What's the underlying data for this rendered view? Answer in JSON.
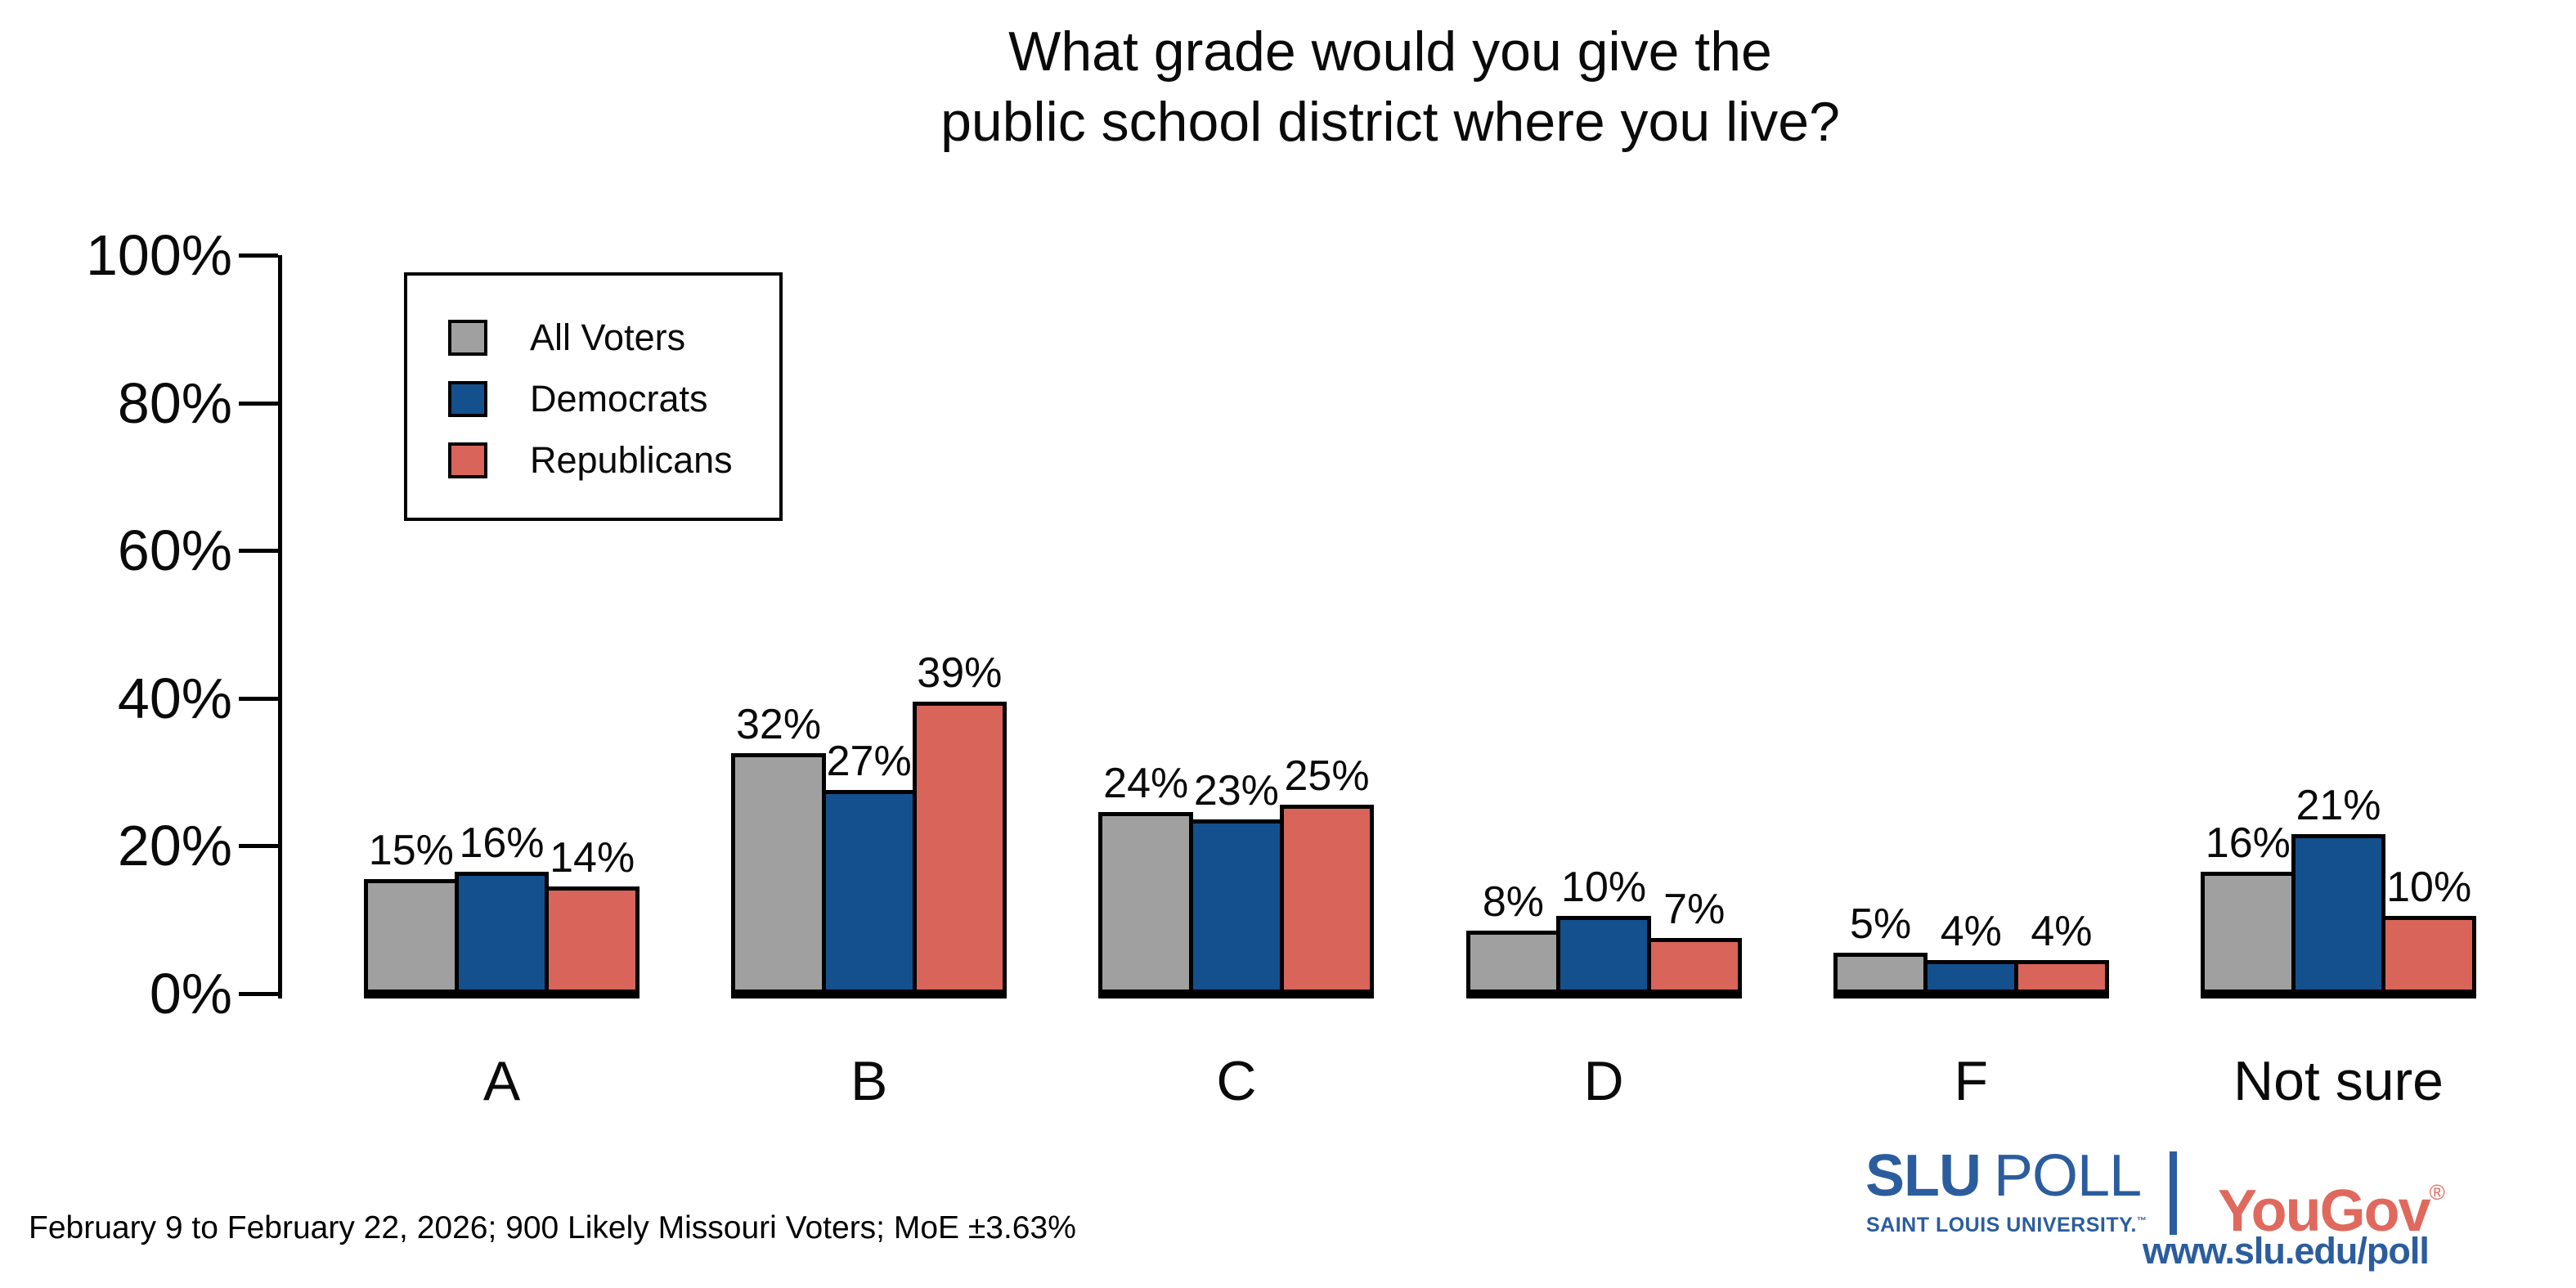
{
  "title": {
    "line1": "What grade would you give the",
    "line2": "public school district where you live?"
  },
  "chart_data": {
    "type": "bar",
    "title": "What grade would you give the public school district where you live?",
    "categories": [
      "A",
      "B",
      "C",
      "D",
      "F",
      "Not sure"
    ],
    "series": [
      {
        "name": "All Voters",
        "color": "#a0a0a0",
        "values": [
          15,
          32,
          24,
          8,
          5,
          16
        ]
      },
      {
        "name": "Democrats",
        "color": "#14508e",
        "values": [
          16,
          27,
          23,
          10,
          4,
          21
        ]
      },
      {
        "name": "Republicans",
        "color": "#d9655a",
        "values": [
          14,
          39,
          25,
          7,
          4,
          10
        ]
      }
    ],
    "value_suffix": "%",
    "ylabel": "",
    "xlabel": "",
    "ylim": [
      0,
      100
    ],
    "y_tick_labels": [
      "0%",
      "20%",
      "40%",
      "60%",
      "80%",
      "100%"
    ],
    "grid": false,
    "legend_position": "upper left",
    "bar_outline_color": "#000000"
  },
  "footer": {
    "note": "February 9 to February 22, 2026; 900 Likely Missouri Voters; MoE ±3.63%"
  },
  "branding": {
    "slu_wordmark_bold": "SLU",
    "slu_wordmark_rest": "POLL",
    "slu_subtitle": "SAINT LOUIS UNIVERSITY.",
    "slu_trademark": "™",
    "yougov_wordmark": "YouGov",
    "yougov_registered": "®",
    "url": "www.slu.edu/poll",
    "slu_blue": "#2b5d9e",
    "yougov_red": "#e0695e"
  }
}
